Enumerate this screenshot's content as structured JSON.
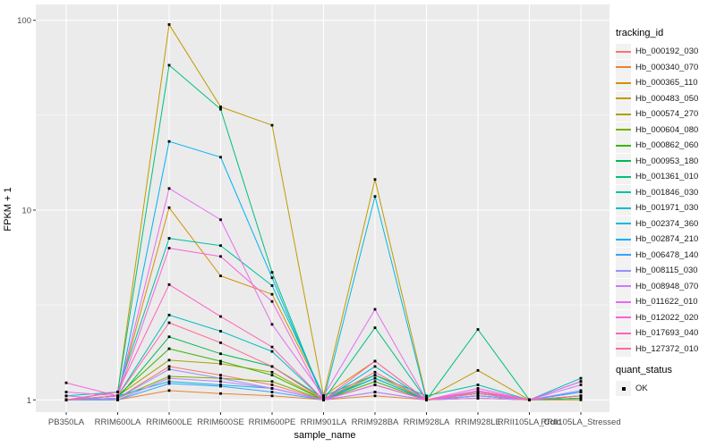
{
  "chart_data": {
    "type": "line",
    "xlabel": "sample_name",
    "ylabel": "FPKM + 1",
    "y_scale": "log10",
    "ylim": [
      0.87,
      120
    ],
    "yticks": [
      1,
      10,
      100
    ],
    "ytick_labels": [
      "1",
      "10",
      "100"
    ],
    "y_minor_gridlines": [
      3.1623,
      31.623
    ],
    "grid": "on",
    "panel_background": "#EBEBEB",
    "gridline_color": "#FFFFFF",
    "point_color": "#000000",
    "legend_position": "right",
    "legend_title": "tracking_id",
    "legend2_title": "quant_status",
    "quant_status": {
      "label": "OK",
      "marker": "black-square"
    },
    "categories": [
      "PB350LA",
      "RRIM600LA",
      "RRIM600LE",
      "RRIM600SE",
      "RRIM600PE",
      "RRIM901LA",
      "RRIM928BA",
      "RRIM928LA",
      "RRIM928LE",
      "RRII105LA_Cold",
      "RRII105LA_Stressed"
    ],
    "series": [
      {
        "name": "Hb_000192_030",
        "color": "#F8766D",
        "values": [
          1.0,
          1.02,
          1.5,
          1.35,
          1.2,
          1.0,
          1.2,
          1.0,
          1.05,
          1.0,
          1.05
        ]
      },
      {
        "name": "Hb_000340_070",
        "color": "#EA8331",
        "values": [
          1.0,
          1.0,
          1.12,
          1.08,
          1.05,
          1.0,
          1.05,
          1.0,
          1.02,
          1.0,
          1.02
        ]
      },
      {
        "name": "Hb_000365_110",
        "color": "#D89000",
        "values": [
          1.0,
          1.05,
          10.3,
          4.5,
          3.6,
          1.05,
          1.6,
          1.0,
          1.02,
          1.0,
          1.0
        ]
      },
      {
        "name": "Hb_000483_050",
        "color": "#C09B00",
        "values": [
          1.0,
          1.1,
          95.0,
          35.0,
          28.0,
          1.05,
          14.5,
          1.02,
          1.43,
          1.0,
          1.05
        ]
      },
      {
        "name": "Hb_000574_270",
        "color": "#A3A500",
        "values": [
          1.0,
          1.05,
          1.62,
          1.55,
          1.4,
          1.0,
          1.35,
          1.0,
          1.1,
          1.0,
          1.05
        ]
      },
      {
        "name": "Hb_000604_080",
        "color": "#7CAE00",
        "values": [
          1.0,
          1.02,
          1.33,
          1.3,
          1.25,
          1.0,
          1.2,
          1.0,
          1.05,
          1.0,
          1.02
        ]
      },
      {
        "name": "Hb_000862_060",
        "color": "#39B600",
        "values": [
          1.0,
          1.05,
          1.86,
          1.6,
          1.35,
          1.0,
          1.25,
          1.0,
          1.1,
          1.0,
          1.05
        ]
      },
      {
        "name": "Hb_000953_180",
        "color": "#00BB4E",
        "values": [
          1.0,
          1.02,
          2.15,
          1.75,
          1.5,
          1.02,
          1.3,
          1.0,
          1.08,
          1.0,
          1.02
        ]
      },
      {
        "name": "Hb_001361_010",
        "color": "#00BF7D",
        "values": [
          1.0,
          1.1,
          58.0,
          34.0,
          4.7,
          1.0,
          2.4,
          1.0,
          2.35,
          1.0,
          1.02
        ]
      },
      {
        "name": "Hb_001846_030",
        "color": "#00C1A3",
        "values": [
          1.05,
          1.1,
          7.1,
          6.5,
          4.0,
          1.05,
          1.35,
          1.05,
          1.2,
          1.0,
          1.1
        ]
      },
      {
        "name": "Hb_001971_030",
        "color": "#00BFC4",
        "values": [
          1.0,
          1.05,
          2.8,
          2.3,
          1.8,
          1.0,
          1.5,
          1.0,
          1.1,
          1.0,
          1.3
        ]
      },
      {
        "name": "Hb_002374_360",
        "color": "#00BAE0",
        "values": [
          1.0,
          1.05,
          1.25,
          1.2,
          1.15,
          1.0,
          11.8,
          1.0,
          1.05,
          1.0,
          1.25
        ]
      },
      {
        "name": "Hb_002874_210",
        "color": "#00B0F6",
        "values": [
          1.0,
          1.02,
          23.0,
          19.0,
          4.4,
          1.0,
          1.3,
          1.0,
          1.05,
          1.0,
          1.1
        ]
      },
      {
        "name": "Hb_006478_140",
        "color": "#35A2FF",
        "values": [
          1.0,
          1.0,
          1.22,
          1.18,
          1.1,
          1.0,
          1.1,
          1.0,
          1.05,
          1.0,
          1.1
        ]
      },
      {
        "name": "Hb_008115_030",
        "color": "#9590FF",
        "values": [
          1.0,
          1.02,
          1.45,
          1.3,
          1.15,
          1.0,
          1.2,
          1.0,
          1.05,
          1.0,
          1.12
        ]
      },
      {
        "name": "Hb_008948_070",
        "color": "#C77CFF",
        "values": [
          1.05,
          1.0,
          1.3,
          1.25,
          1.15,
          1.0,
          1.1,
          1.0,
          1.02,
          1.0,
          1.2
        ]
      },
      {
        "name": "Hb_011622_010",
        "color": "#E76BF3",
        "values": [
          1.1,
          1.05,
          13.0,
          8.9,
          2.5,
          1.05,
          3.0,
          1.0,
          1.15,
          1.0,
          1.25
        ]
      },
      {
        "name": "Hb_012022_020",
        "color": "#FA62DB",
        "values": [
          1.23,
          1.05,
          6.3,
          5.7,
          3.3,
          1.0,
          1.2,
          1.0,
          1.12,
          1.0,
          1.25
        ]
      },
      {
        "name": "Hb_017693_040",
        "color": "#FF62BC",
        "values": [
          1.0,
          1.1,
          4.05,
          2.75,
          1.9,
          1.0,
          1.6,
          1.0,
          1.1,
          1.0,
          1.05
        ]
      },
      {
        "name": "Hb_127372_010",
        "color": "#FF6A98",
        "values": [
          1.0,
          1.05,
          2.55,
          2.0,
          1.5,
          1.0,
          1.4,
          1.0,
          1.08,
          1.0,
          1.05
        ]
      }
    ]
  }
}
